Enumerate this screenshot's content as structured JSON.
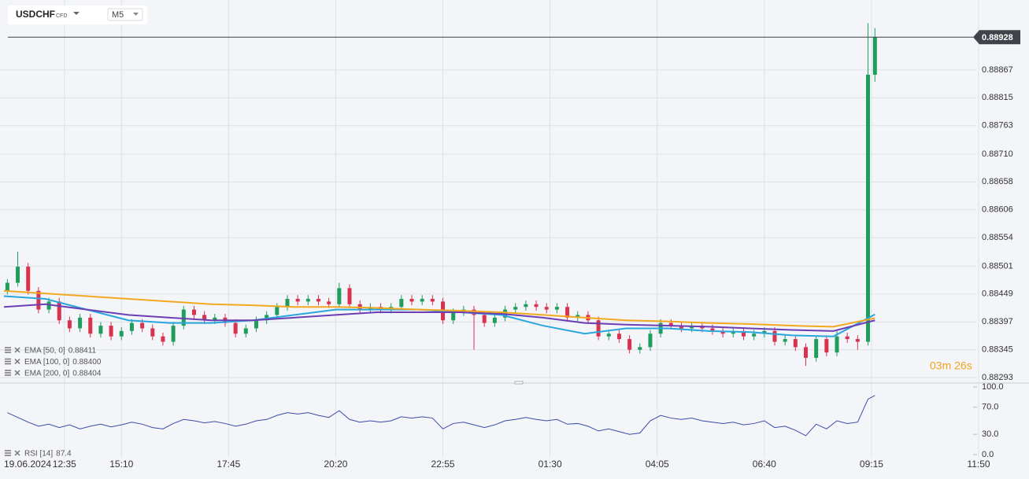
{
  "chart_data": {
    "type": "candlestick",
    "symbol": "USDCHF",
    "instrument_type": "CFD",
    "timeframe": "M5",
    "x_start_label": "19.06.2024",
    "countdown": "03m 26s",
    "up_color": "#1f9d5c",
    "down_color": "#d8324e",
    "grid": true,
    "xlim": [
      0,
      282
    ],
    "xticks": [
      {
        "value": 17.5,
        "label": "12:35"
      },
      {
        "value": 34,
        "label": "15:10"
      },
      {
        "value": 65,
        "label": "17:45"
      },
      {
        "value": 96,
        "label": "20:20"
      },
      {
        "value": 127,
        "label": "22:55"
      },
      {
        "value": 158,
        "label": "01:30"
      },
      {
        "value": 189,
        "label": "04:05"
      },
      {
        "value": 220,
        "label": "06:40"
      },
      {
        "value": 251,
        "label": "09:15"
      },
      {
        "value": 282,
        "label": "11:50"
      }
    ],
    "ylim": [
      0.88283,
      0.8899
    ],
    "yticks": [
      0.88293,
      0.88345,
      0.88397,
      0.88449,
      0.88501,
      0.88554,
      0.88606,
      0.88658,
      {
        "value": 0.8871,
        "label": "0.88710"
      },
      0.88763,
      0.88815,
      0.88867
    ],
    "x": [
      1,
      4,
      7,
      10,
      13,
      16,
      19,
      22,
      25,
      28,
      31,
      34,
      37,
      40,
      43,
      46,
      49,
      52,
      55,
      58,
      61,
      64,
      67,
      70,
      73,
      76,
      79,
      82,
      85,
      88,
      91,
      94,
      97,
      100,
      103,
      106,
      109,
      112,
      115,
      118,
      121,
      124,
      127,
      130,
      133,
      136,
      139,
      142,
      145,
      148,
      151,
      154,
      157,
      160,
      163,
      166,
      169,
      172,
      175,
      178,
      181,
      184,
      187,
      190,
      193,
      196,
      199,
      202,
      205,
      208,
      211,
      214,
      217,
      220,
      223,
      226,
      229,
      232,
      235,
      238,
      241,
      244,
      247,
      250,
      252
    ],
    "open": [
      0.88455,
      0.8847,
      0.885,
      0.88455,
      0.8842,
      0.88435,
      0.884,
      0.88385,
      0.88405,
      0.88375,
      0.8839,
      0.8837,
      0.8838,
      0.88395,
      0.88385,
      0.8837,
      0.8836,
      0.8839,
      0.8842,
      0.8841,
      0.884,
      0.88405,
      0.88395,
      0.88375,
      0.88385,
      0.884,
      0.8841,
      0.88425,
      0.8844,
      0.88435,
      0.8844,
      0.88435,
      0.8843,
      0.8846,
      0.8843,
      0.8842,
      0.88425,
      0.8842,
      0.88425,
      0.8844,
      0.88435,
      0.8844,
      0.88435,
      0.884,
      0.88415,
      0.8842,
      0.8841,
      0.88395,
      0.88405,
      0.8842,
      0.88425,
      0.8843,
      0.88425,
      0.8842,
      0.88425,
      0.88405,
      0.8841,
      0.884,
      0.8837,
      0.88375,
      0.88365,
      0.88345,
      0.8835,
      0.88375,
      0.88395,
      0.8839,
      0.88385,
      0.8839,
      0.88385,
      0.8838,
      0.88375,
      0.8838,
      0.8837,
      0.88375,
      0.8838,
      0.8836,
      0.88365,
      0.8835,
      0.8833,
      0.88365,
      0.8834,
      0.8837,
      0.88365,
      0.8836,
      0.88858
    ],
    "high": [
      0.88477,
      0.88528,
      0.88507,
      0.88462,
      0.88442,
      0.88442,
      0.88407,
      0.88412,
      0.88412,
      0.88397,
      0.88397,
      0.88387,
      0.88402,
      0.88402,
      0.88392,
      0.88377,
      0.88397,
      0.88427,
      0.88427,
      0.88417,
      0.88412,
      0.88412,
      0.88402,
      0.88392,
      0.88407,
      0.88417,
      0.88432,
      0.88447,
      0.88447,
      0.88447,
      0.88447,
      0.88442,
      0.8847,
      0.88467,
      0.88437,
      0.88432,
      0.88432,
      0.88432,
      0.88447,
      0.88447,
      0.88447,
      0.88447,
      0.88442,
      0.88422,
      0.88427,
      0.88427,
      0.88417,
      0.88412,
      0.88427,
      0.88432,
      0.88437,
      0.88437,
      0.88432,
      0.88432,
      0.88432,
      0.88417,
      0.88417,
      0.88407,
      0.88382,
      0.88382,
      0.88372,
      0.88357,
      0.88382,
      0.88402,
      0.88402,
      0.88397,
      0.88397,
      0.88397,
      0.88392,
      0.88387,
      0.88387,
      0.88387,
      0.88382,
      0.88387,
      0.88387,
      0.88372,
      0.88372,
      0.88357,
      0.88372,
      0.88372,
      0.8838,
      0.88377,
      0.88372,
      0.88954,
      0.88945
    ],
    "low": [
      0.88448,
      0.88463,
      0.88448,
      0.88413,
      0.88413,
      0.88393,
      0.88378,
      0.88378,
      0.88368,
      0.88368,
      0.88363,
      0.88363,
      0.88373,
      0.88378,
      0.88363,
      0.88353,
      0.88353,
      0.88383,
      0.88403,
      0.88393,
      0.88393,
      0.88388,
      0.88368,
      0.88368,
      0.88378,
      0.88393,
      0.88403,
      0.88418,
      0.88428,
      0.88428,
      0.88428,
      0.88423,
      0.88423,
      0.88423,
      0.88413,
      0.88413,
      0.88413,
      0.88413,
      0.88418,
      0.88428,
      0.88428,
      0.88428,
      0.88393,
      0.88393,
      0.88408,
      0.88345,
      0.88388,
      0.88388,
      0.88398,
      0.88413,
      0.88418,
      0.88418,
      0.88413,
      0.88413,
      0.88398,
      0.88398,
      0.88393,
      0.88363,
      0.88363,
      0.88358,
      0.88338,
      0.88338,
      0.88343,
      0.88368,
      0.88383,
      0.88378,
      0.88378,
      0.88378,
      0.88373,
      0.88368,
      0.88368,
      0.88363,
      0.88363,
      0.88368,
      0.88353,
      0.88353,
      0.88343,
      0.88315,
      0.88323,
      0.88333,
      0.88333,
      0.88358,
      0.88345,
      0.88353,
      0.88845
    ],
    "close": [
      0.8847,
      0.885,
      0.88455,
      0.8842,
      0.88435,
      0.884,
      0.88385,
      0.88405,
      0.88375,
      0.8839,
      0.8837,
      0.8838,
      0.88395,
      0.88385,
      0.8837,
      0.8836,
      0.8839,
      0.8842,
      0.8841,
      0.884,
      0.88405,
      0.88395,
      0.88375,
      0.88385,
      0.884,
      0.8841,
      0.88425,
      0.8844,
      0.88435,
      0.8844,
      0.88435,
      0.8843,
      0.8846,
      0.8843,
      0.8842,
      0.88425,
      0.8842,
      0.88425,
      0.8844,
      0.88435,
      0.8844,
      0.88435,
      0.884,
      0.88415,
      0.8842,
      0.8841,
      0.88395,
      0.88405,
      0.8842,
      0.88425,
      0.8843,
      0.88425,
      0.8842,
      0.88425,
      0.88405,
      0.8841,
      0.884,
      0.8837,
      0.88375,
      0.88365,
      0.88345,
      0.8835,
      0.88375,
      0.88395,
      0.8839,
      0.88385,
      0.8839,
      0.88385,
      0.8838,
      0.88375,
      0.8838,
      0.8837,
      0.88375,
      0.8838,
      0.8836,
      0.88365,
      0.8835,
      0.8833,
      0.88365,
      0.8834,
      0.8837,
      0.88365,
      0.8836,
      0.88858,
      0.88928
    ],
    "overlays": [
      {
        "name": "EMA [50, 0]",
        "color": "#2aa6de",
        "legend_value": "0.88411",
        "x": [
          0,
          12,
          24,
          36,
          48,
          60,
          72,
          84,
          96,
          108,
          120,
          132,
          144,
          156,
          168,
          180,
          192,
          204,
          216,
          228,
          240,
          252
        ],
        "values": [
          0.88445,
          0.8844,
          0.8842,
          0.884,
          0.88395,
          0.88395,
          0.884,
          0.8841,
          0.8842,
          0.8842,
          0.8842,
          0.88415,
          0.8841,
          0.8839,
          0.88375,
          0.88385,
          0.88385,
          0.8838,
          0.88378,
          0.88372,
          0.8837,
          0.88411
        ]
      },
      {
        "name": "EMA [100, 0]",
        "color": "#6b3fb3",
        "legend_value": "0.88400",
        "x": [
          0,
          12,
          24,
          36,
          48,
          60,
          72,
          84,
          96,
          108,
          120,
          132,
          144,
          156,
          168,
          180,
          192,
          204,
          216,
          228,
          240,
          252
        ],
        "values": [
          0.88425,
          0.8843,
          0.8842,
          0.8841,
          0.88405,
          0.884,
          0.884,
          0.88405,
          0.8841,
          0.88415,
          0.88415,
          0.88415,
          0.88412,
          0.88405,
          0.88395,
          0.88392,
          0.8839,
          0.88388,
          0.88385,
          0.88382,
          0.8838,
          0.884
        ]
      },
      {
        "name": "EMA [200, 0]",
        "color": "#f2a91f",
        "legend_value": "0.88404",
        "x": [
          0,
          12,
          24,
          36,
          48,
          60,
          72,
          84,
          96,
          108,
          120,
          132,
          144,
          156,
          168,
          180,
          192,
          204,
          216,
          228,
          240,
          252
        ],
        "values": [
          0.88455,
          0.8845,
          0.88445,
          0.8844,
          0.88435,
          0.8843,
          0.88428,
          0.88425,
          0.88425,
          0.88423,
          0.8842,
          0.88418,
          0.88415,
          0.8841,
          0.88405,
          0.884,
          0.88398,
          0.88395,
          0.88393,
          0.8839,
          0.88388,
          0.88404
        ]
      }
    ],
    "rsi": {
      "name": "RSI [14]",
      "color": "#3b4aa8",
      "ylim": [
        0,
        100
      ],
      "yticks": [
        {
          "value": 0,
          "label": "0.0"
        },
        {
          "value": 30,
          "label": "30.0"
        },
        {
          "value": 70,
          "label": "70.0"
        },
        {
          "value": 100,
          "label": "100.0"
        }
      ],
      "values": [
        62,
        55,
        48,
        42,
        45,
        40,
        44,
        38,
        42,
        45,
        41,
        44,
        48,
        45,
        40,
        38,
        46,
        52,
        50,
        47,
        49,
        46,
        42,
        45,
        50,
        52,
        58,
        62,
        60,
        62,
        58,
        55,
        65,
        52,
        48,
        50,
        48,
        50,
        56,
        54,
        56,
        54,
        38,
        46,
        48,
        44,
        40,
        44,
        50,
        52,
        55,
        52,
        50,
        52,
        45,
        46,
        42,
        35,
        38,
        34,
        30,
        32,
        50,
        58,
        54,
        52,
        54,
        50,
        48,
        46,
        48,
        44,
        46,
        50,
        40,
        42,
        36,
        28,
        45,
        38,
        50,
        46,
        48,
        82,
        87.4
      ]
    }
  }
}
